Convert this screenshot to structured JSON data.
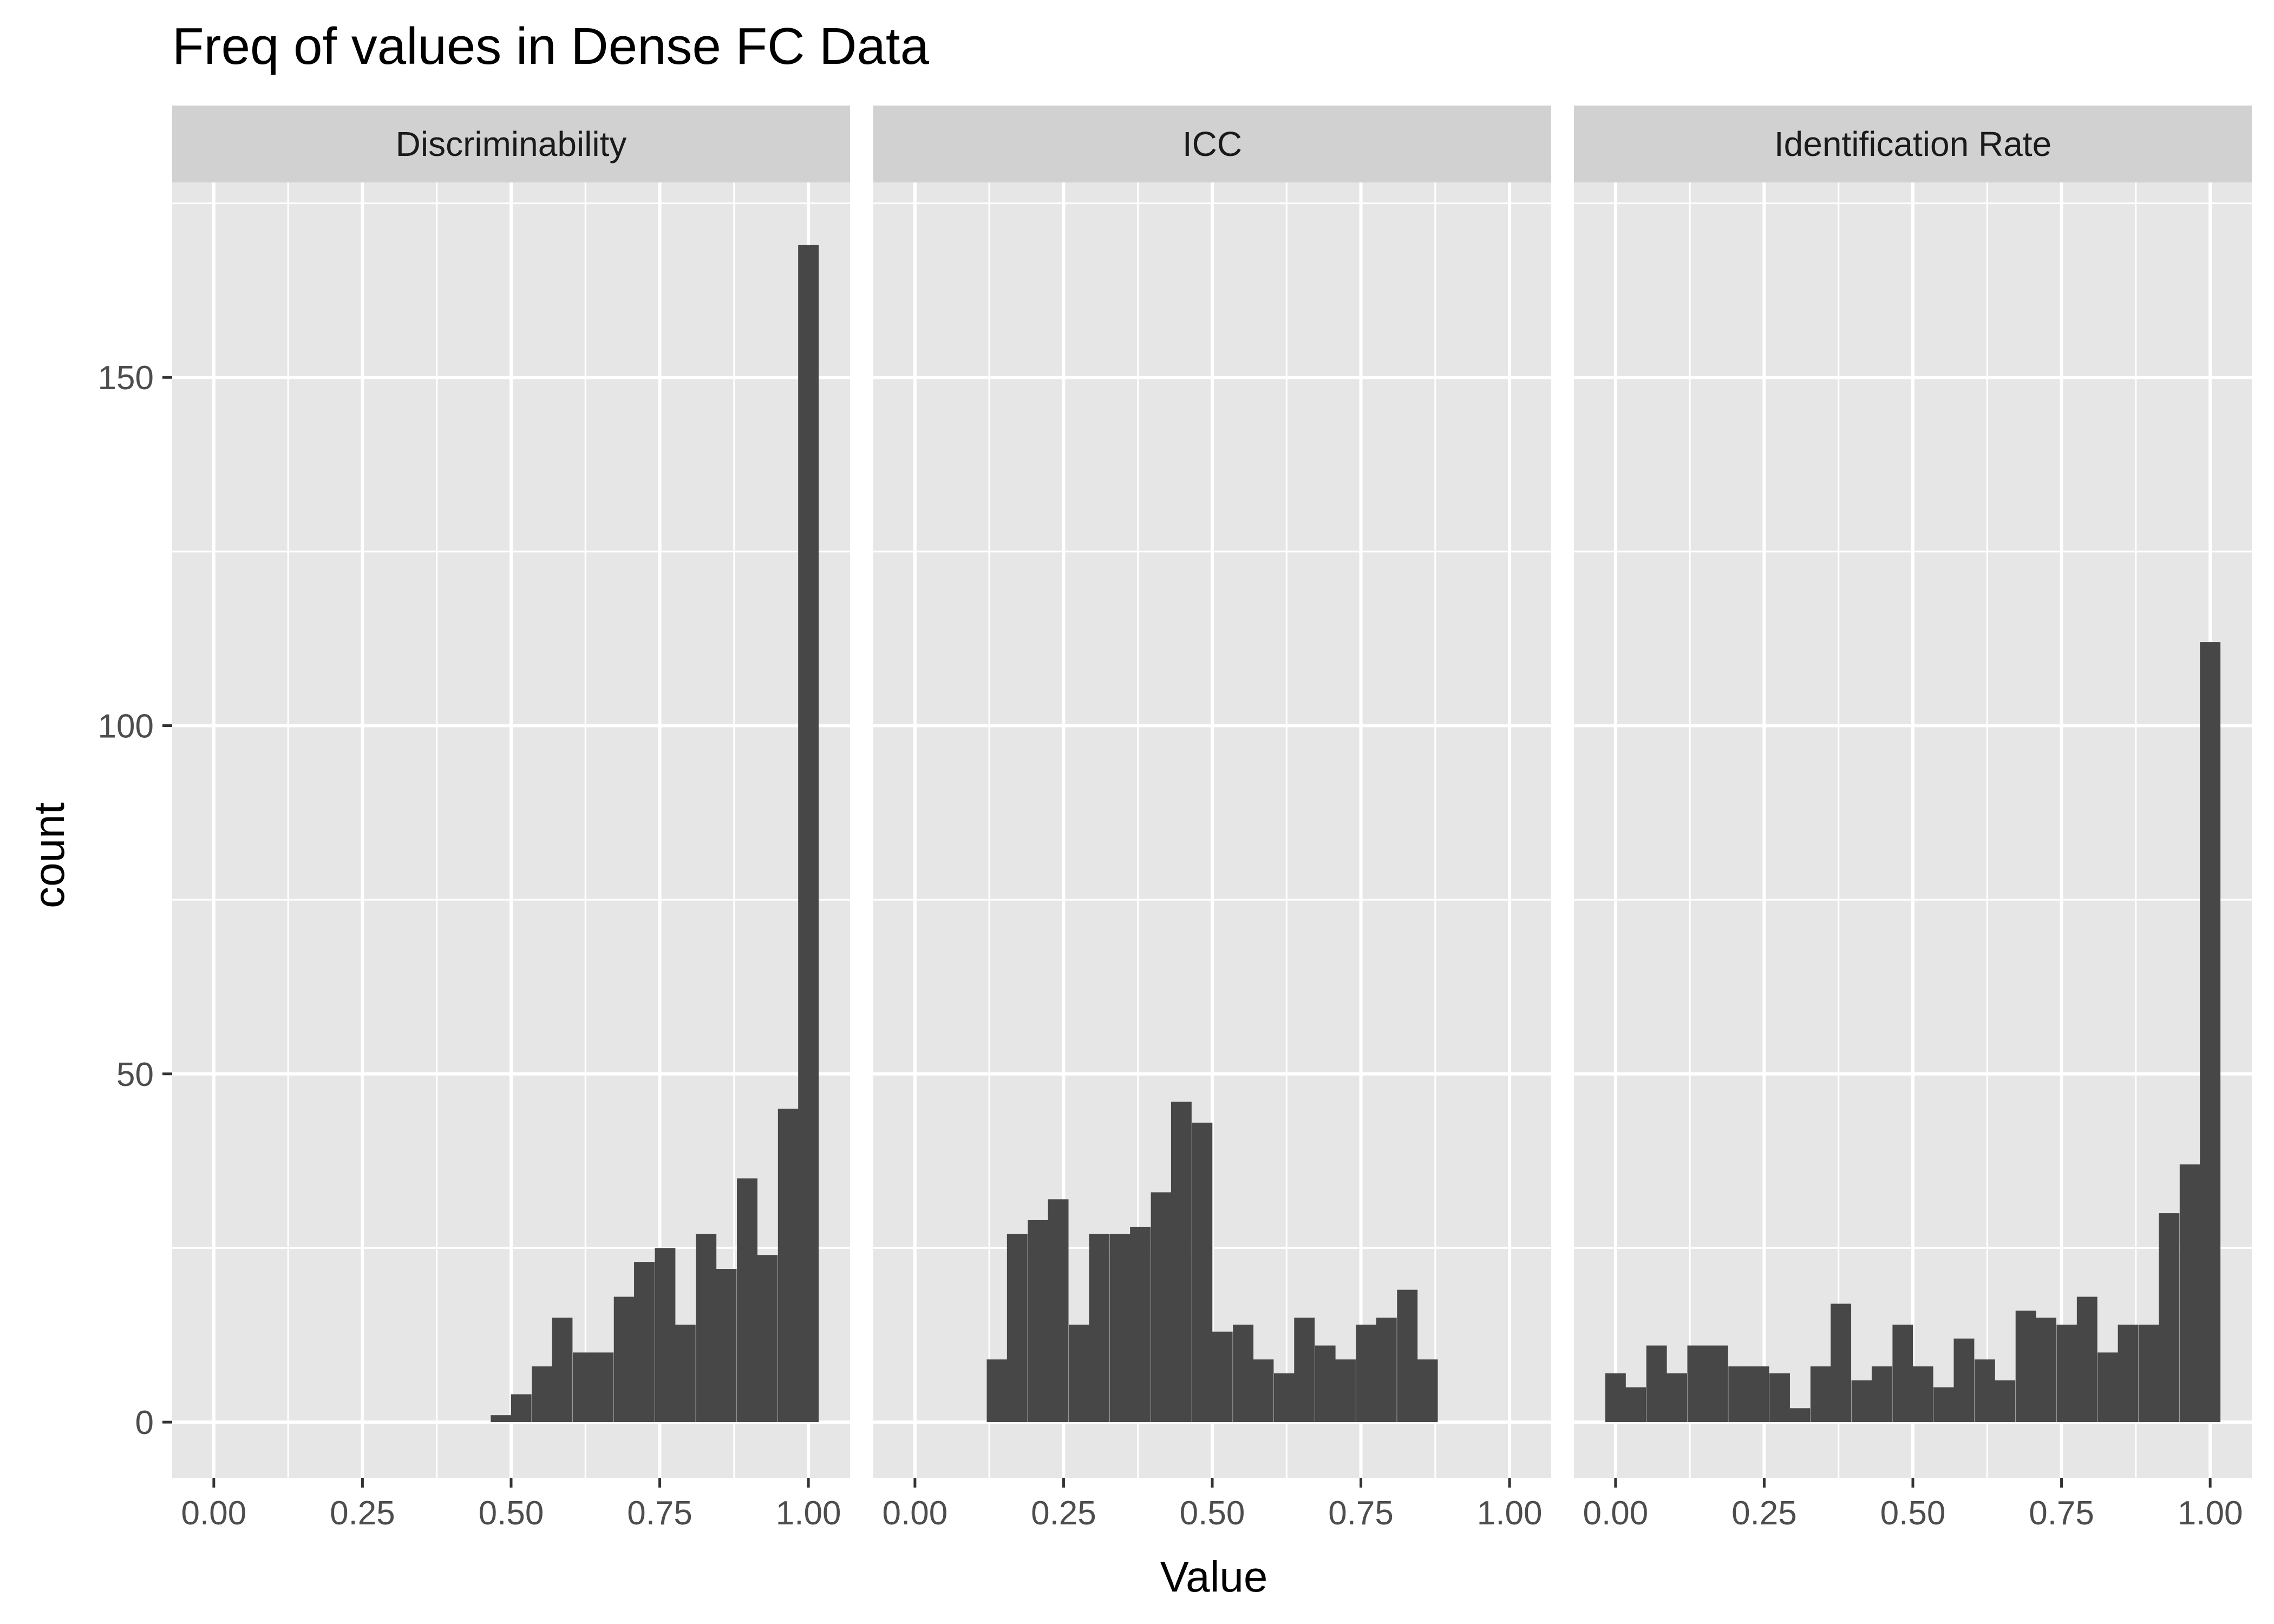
{
  "chart_data": {
    "type": "bar",
    "title": "Freq of values in Dense FC Data",
    "xlabel": "Value",
    "ylabel": "count",
    "xlim": [
      -0.07,
      1.07
    ],
    "ylim": [
      -8,
      178
    ],
    "x_ticks": [
      "0.00",
      "0.25",
      "0.50",
      "0.75",
      "1.00"
    ],
    "y_ticks": [
      "0",
      "50",
      "100",
      "150"
    ],
    "grid": true,
    "bar_color": "#474747",
    "panel_background": "#e6e6e6",
    "strip_background": "#d1d1d1",
    "bin_width": 0.0345,
    "facets": [
      {
        "label": "Discriminability",
        "bins": [
          {
            "x": 0.483,
            "count": 1
          },
          {
            "x": 0.517,
            "count": 4
          },
          {
            "x": 0.552,
            "count": 8
          },
          {
            "x": 0.586,
            "count": 15
          },
          {
            "x": 0.621,
            "count": 10
          },
          {
            "x": 0.655,
            "count": 10
          },
          {
            "x": 0.69,
            "count": 18
          },
          {
            "x": 0.724,
            "count": 23
          },
          {
            "x": 0.759,
            "count": 25
          },
          {
            "x": 0.793,
            "count": 14
          },
          {
            "x": 0.828,
            "count": 27
          },
          {
            "x": 0.862,
            "count": 22
          },
          {
            "x": 0.897,
            "count": 35
          },
          {
            "x": 0.931,
            "count": 24
          },
          {
            "x": 0.966,
            "count": 45
          },
          {
            "x": 1.0,
            "count": 169
          }
        ]
      },
      {
        "label": "ICC",
        "bins": [
          {
            "x": 0.138,
            "count": 9
          },
          {
            "x": 0.172,
            "count": 27
          },
          {
            "x": 0.207,
            "count": 29
          },
          {
            "x": 0.241,
            "count": 32
          },
          {
            "x": 0.276,
            "count": 14
          },
          {
            "x": 0.31,
            "count": 27
          },
          {
            "x": 0.345,
            "count": 27
          },
          {
            "x": 0.379,
            "count": 28
          },
          {
            "x": 0.414,
            "count": 33
          },
          {
            "x": 0.448,
            "count": 46
          },
          {
            "x": 0.483,
            "count": 43
          },
          {
            "x": 0.517,
            "count": 13
          },
          {
            "x": 0.552,
            "count": 14
          },
          {
            "x": 0.586,
            "count": 9
          },
          {
            "x": 0.621,
            "count": 7
          },
          {
            "x": 0.655,
            "count": 15
          },
          {
            "x": 0.69,
            "count": 11
          },
          {
            "x": 0.724,
            "count": 9
          },
          {
            "x": 0.759,
            "count": 14
          },
          {
            "x": 0.793,
            "count": 15
          },
          {
            "x": 0.828,
            "count": 19
          },
          {
            "x": 0.862,
            "count": 9
          }
        ]
      },
      {
        "label": "Identification Rate",
        "bins": [
          {
            "x": 0.0,
            "count": 7
          },
          {
            "x": 0.034,
            "count": 5
          },
          {
            "x": 0.069,
            "count": 11
          },
          {
            "x": 0.103,
            "count": 7
          },
          {
            "x": 0.138,
            "count": 11
          },
          {
            "x": 0.172,
            "count": 11
          },
          {
            "x": 0.207,
            "count": 8
          },
          {
            "x": 0.241,
            "count": 8
          },
          {
            "x": 0.276,
            "count": 7
          },
          {
            "x": 0.31,
            "count": 2
          },
          {
            "x": 0.345,
            "count": 8
          },
          {
            "x": 0.379,
            "count": 17
          },
          {
            "x": 0.414,
            "count": 6
          },
          {
            "x": 0.448,
            "count": 8
          },
          {
            "x": 0.483,
            "count": 14
          },
          {
            "x": 0.517,
            "count": 8
          },
          {
            "x": 0.552,
            "count": 5
          },
          {
            "x": 0.586,
            "count": 12
          },
          {
            "x": 0.621,
            "count": 9
          },
          {
            "x": 0.655,
            "count": 6
          },
          {
            "x": 0.69,
            "count": 16
          },
          {
            "x": 0.724,
            "count": 15
          },
          {
            "x": 0.759,
            "count": 14
          },
          {
            "x": 0.793,
            "count": 18
          },
          {
            "x": 0.828,
            "count": 10
          },
          {
            "x": 0.862,
            "count": 14
          },
          {
            "x": 0.897,
            "count": 14
          },
          {
            "x": 0.931,
            "count": 30
          },
          {
            "x": 0.966,
            "count": 37
          },
          {
            "x": 1.0,
            "count": 112
          }
        ]
      }
    ]
  }
}
